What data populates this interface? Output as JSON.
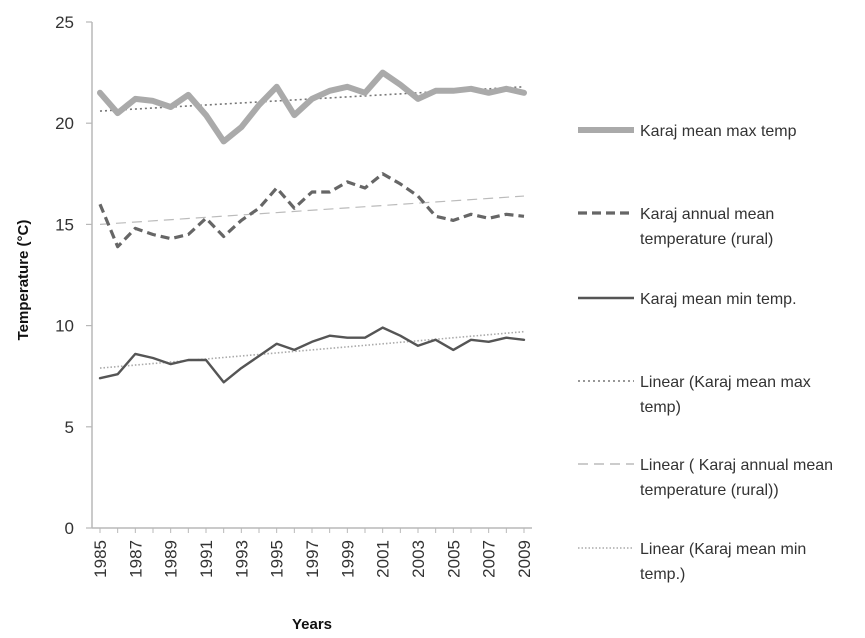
{
  "chart_data": {
    "type": "line",
    "title": "",
    "xlabel": "Years",
    "ylabel": "Temperature (°C)",
    "ylim": [
      0,
      25
    ],
    "yticks": [
      0,
      5,
      10,
      15,
      20,
      25
    ],
    "x": [
      1985,
      1986,
      1987,
      1988,
      1989,
      1990,
      1991,
      1992,
      1993,
      1994,
      1995,
      1996,
      1997,
      1998,
      1999,
      2000,
      2001,
      2002,
      2003,
      2004,
      2005,
      2006,
      2007,
      2008,
      2009
    ],
    "xtick_labels": [
      "1985",
      "1987",
      "1989",
      "1991",
      "1993",
      "1995",
      "1997",
      "1999",
      "2001",
      "2003",
      "2005",
      "2007",
      "2009"
    ],
    "grid": false,
    "legend_position": "right",
    "series": [
      {
        "name": "Karaj mean max temp",
        "legend_lines": [
          "Karaj mean max temp"
        ],
        "color": "#aaaaaa",
        "style": "thick-solid",
        "values": [
          21.5,
          20.5,
          21.2,
          21.1,
          20.8,
          21.4,
          20.4,
          19.1,
          19.8,
          20.9,
          21.8,
          20.4,
          21.2,
          21.6,
          21.8,
          21.5,
          22.5,
          21.9,
          21.2,
          21.6,
          21.6,
          21.7,
          21.5,
          21.7,
          21.5
        ]
      },
      {
        "name": "Karaj annual mean temperature (rural)",
        "legend_lines": [
          "Karaj annual mean",
          "temperature (rural)"
        ],
        "color": "#666666",
        "style": "dashed",
        "values": [
          16.0,
          13.9,
          14.8,
          14.5,
          14.3,
          14.5,
          15.3,
          14.4,
          15.2,
          15.8,
          16.8,
          15.8,
          16.6,
          16.6,
          17.1,
          16.8,
          17.5,
          17.0,
          16.4,
          15.4,
          15.2,
          15.5,
          15.3,
          15.5,
          15.4
        ]
      },
      {
        "name": "Karaj mean min temp.",
        "legend_lines": [
          "Karaj mean min temp."
        ],
        "color": "#555555",
        "style": "solid",
        "values": [
          7.4,
          7.6,
          8.6,
          8.4,
          8.1,
          8.3,
          8.3,
          7.2,
          7.9,
          8.5,
          9.1,
          8.8,
          9.2,
          9.5,
          9.4,
          9.4,
          9.9,
          9.5,
          9.0,
          9.3,
          8.8,
          9.3,
          9.2,
          9.4,
          9.3
        ]
      },
      {
        "name": "Linear (Karaj mean max temp)",
        "legend_lines": [
          "Linear (Karaj mean max",
          "temp)"
        ],
        "color": "#777777",
        "style": "dotted",
        "trend": [
          20.6,
          21.8
        ]
      },
      {
        "name": "Linear ( Karaj annual mean temperature (rural))",
        "legend_lines": [
          "Linear ( Karaj annual mean",
          "temperature (rural))"
        ],
        "color": "#bbbbbb",
        "style": "long-dash",
        "trend": [
          15.0,
          16.4
        ]
      },
      {
        "name": "Linear (Karaj mean min temp.)",
        "legend_lines": [
          "Linear (Karaj mean min",
          "temp.)"
        ],
        "color": "#aaaaaa",
        "style": "fine-dotted",
        "trend": [
          7.9,
          9.7
        ]
      }
    ]
  }
}
